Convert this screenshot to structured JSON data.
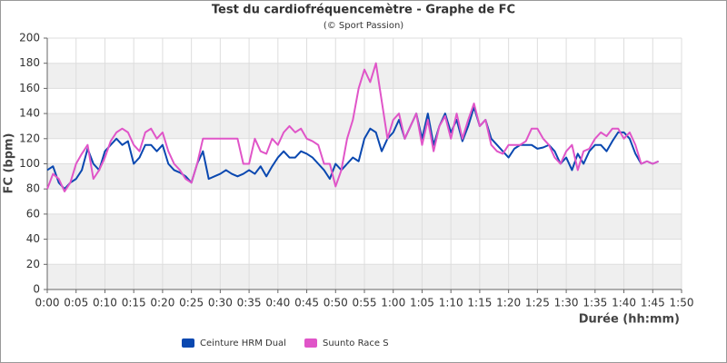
{
  "chart_data": {
    "type": "line",
    "title": "Test du cardiofréquencemètre - Graphe de FC",
    "subtitle": "(© Sport Passion)",
    "x_label": "Durée (hh:mm)",
    "y_label": "FC (bpm)",
    "x": [
      0,
      1,
      2,
      3,
      4,
      5,
      6,
      7,
      8,
      9,
      10,
      11,
      12,
      13,
      14,
      15,
      16,
      17,
      18,
      19,
      20,
      21,
      22,
      23,
      24,
      25,
      26,
      27,
      28,
      29,
      30,
      31,
      32,
      33,
      34,
      35,
      36,
      37,
      38,
      39,
      40,
      41,
      42,
      43,
      44,
      45,
      46,
      47,
      48,
      49,
      50,
      51,
      52,
      53,
      54,
      55,
      56,
      57,
      58,
      59,
      60,
      61,
      62,
      63,
      64,
      65,
      66,
      67,
      68,
      69,
      70,
      71,
      72,
      73,
      74,
      75,
      76,
      77,
      78,
      79,
      80,
      81,
      82,
      83,
      84,
      85,
      86,
      87,
      88,
      89,
      90,
      91,
      92,
      93,
      94,
      95,
      96,
      97,
      98,
      99,
      100,
      101,
      102,
      103,
      104,
      105,
      106
    ],
    "series": [
      {
        "name": "Ceinture HRM Dual",
        "color": "#0a48b0",
        "values": [
          95,
          98,
          85,
          80,
          85,
          88,
          95,
          112,
          100,
          95,
          110,
          115,
          120,
          115,
          118,
          100,
          105,
          115,
          115,
          110,
          115,
          100,
          95,
          93,
          90,
          85,
          100,
          110,
          88,
          90,
          92,
          95,
          92,
          90,
          92,
          95,
          92,
          98,
          90,
          98,
          105,
          110,
          105,
          105,
          110,
          108,
          105,
          100,
          95,
          88,
          100,
          95,
          100,
          105,
          102,
          120,
          128,
          125,
          110,
          120,
          125,
          135,
          120,
          130,
          140,
          120,
          140,
          115,
          130,
          140,
          125,
          135,
          118,
          130,
          145,
          130,
          135,
          120,
          115,
          110,
          105,
          112,
          115,
          115,
          115,
          112,
          113,
          115,
          110,
          100,
          105,
          95,
          108,
          100,
          110,
          115,
          115,
          110,
          118,
          125,
          125,
          120,
          108,
          100,
          102,
          100,
          102
        ]
      },
      {
        "name": "Suunto Race S",
        "color": "#e055c8",
        "values": [
          80,
          92,
          88,
          78,
          85,
          100,
          108,
          115,
          88,
          95,
          105,
          118,
          125,
          128,
          125,
          115,
          110,
          125,
          128,
          120,
          125,
          110,
          100,
          95,
          88,
          85,
          100,
          120,
          120,
          120,
          120,
          120,
          120,
          120,
          100,
          100,
          120,
          110,
          108,
          120,
          115,
          125,
          130,
          125,
          128,
          120,
          118,
          115,
          100,
          100,
          82,
          95,
          120,
          135,
          160,
          175,
          165,
          180,
          150,
          120,
          135,
          140,
          120,
          130,
          140,
          115,
          135,
          110,
          130,
          138,
          120,
          140,
          120,
          135,
          148,
          130,
          135,
          115,
          110,
          108,
          115,
          115,
          115,
          118,
          128,
          128,
          120,
          115,
          105,
          100,
          110,
          115,
          95,
          110,
          112,
          120,
          125,
          122,
          128,
          128,
          120,
          125,
          115,
          100,
          102,
          100,
          102
        ]
      }
    ],
    "xlim": [
      0,
      110
    ],
    "xticks": [
      {
        "value": 0,
        "label": "0:00"
      },
      {
        "value": 5,
        "label": "0:05"
      },
      {
        "value": 10,
        "label": "0:10"
      },
      {
        "value": 15,
        "label": "0:15"
      },
      {
        "value": 20,
        "label": "0:20"
      },
      {
        "value": 25,
        "label": "0:25"
      },
      {
        "value": 30,
        "label": "0:30"
      },
      {
        "value": 35,
        "label": "0:35"
      },
      {
        "value": 40,
        "label": "0:40"
      },
      {
        "value": 45,
        "label": "0:45"
      },
      {
        "value": 50,
        "label": "0:50"
      },
      {
        "value": 55,
        "label": "0:55"
      },
      {
        "value": 60,
        "label": "1:00"
      },
      {
        "value": 65,
        "label": "1:05"
      },
      {
        "value": 70,
        "label": "1:10"
      },
      {
        "value": 75,
        "label": "1:15"
      },
      {
        "value": 80,
        "label": "1:20"
      },
      {
        "value": 85,
        "label": "1:25"
      },
      {
        "value": 90,
        "label": "1:30"
      },
      {
        "value": 95,
        "label": "1:35"
      },
      {
        "value": 100,
        "label": "1:40"
      },
      {
        "value": 105,
        "label": "1:45"
      },
      {
        "value": 110,
        "label": "1:50"
      }
    ],
    "ylim": [
      0,
      200
    ],
    "yticks": [
      0,
      20,
      40,
      60,
      80,
      100,
      120,
      140,
      160,
      180,
      200
    ],
    "grid": true
  }
}
